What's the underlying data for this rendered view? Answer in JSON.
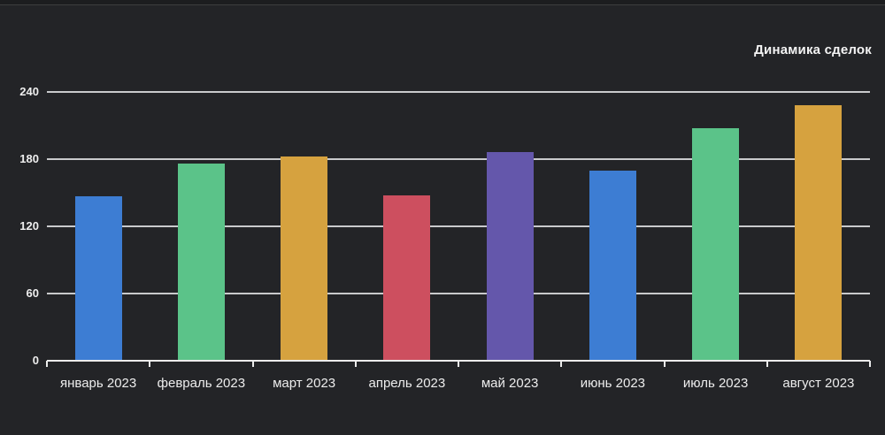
{
  "window": {
    "background_color": "#232427",
    "top_strip_color": "#1c1d1f"
  },
  "chart_data": {
    "type": "bar",
    "title": "Динамика сделок",
    "categories": [
      "январь 2023",
      "февраль 2023",
      "март 2023",
      "апрель 2023",
      "май 2023",
      "июнь 2023",
      "июль 2023",
      "август 2023"
    ],
    "values": [
      147,
      176,
      182,
      148,
      186,
      170,
      208,
      228
    ],
    "bar_colors": [
      "#3d7dd3",
      "#5bc389",
      "#d6a23f",
      "#cd4f5f",
      "#6457ab",
      "#3d7dd3",
      "#5bc389",
      "#d6a23f"
    ],
    "xlabel": "",
    "ylabel": "",
    "y_ticks": [
      0,
      60,
      120,
      180,
      240
    ],
    "ylim": [
      0,
      240
    ],
    "grid": "horizontal",
    "grid_color": "#c9cacc",
    "axis_color": "#ececec",
    "label_color": "#ededed",
    "legend_position": "none"
  }
}
